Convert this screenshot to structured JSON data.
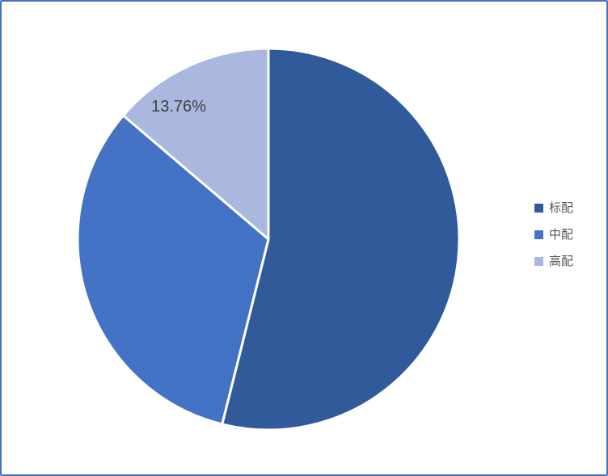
{
  "page": {
    "background": "#ffffff",
    "border_color": "#4472C4"
  },
  "chart_data": {
    "type": "pie",
    "title": "",
    "categories": [
      "标配",
      "中配",
      "高配"
    ],
    "values": [
      53.9,
      32.34,
      13.76
    ],
    "colors": [
      "#315A9B",
      "#4472C4",
      "#AAB8DF"
    ],
    "slice_separator_color": "#ffffff",
    "start_angle_deg": 0,
    "direction": "clockwise",
    "legend_position": "right",
    "legend_text_color": "#595959",
    "data_labels": [
      {
        "category": "高配",
        "text": "13.76%"
      }
    ],
    "data_label_color": "#404040"
  }
}
